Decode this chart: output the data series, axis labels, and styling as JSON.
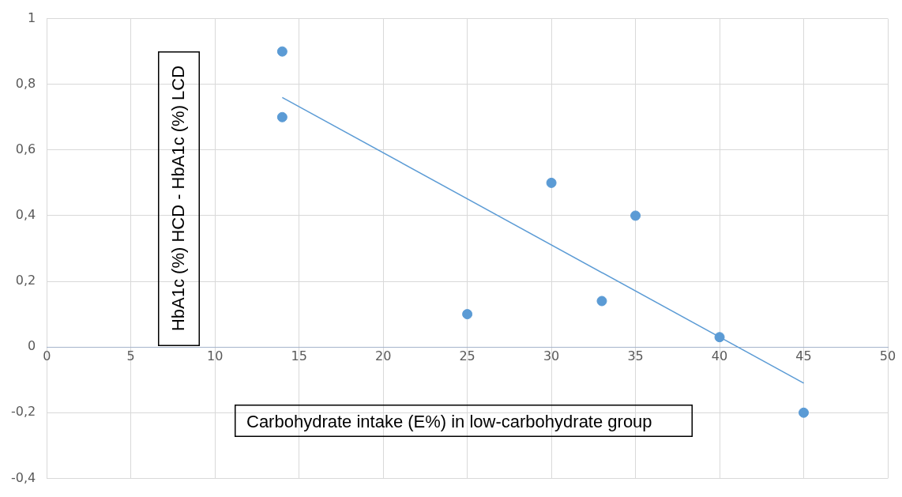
{
  "chart_data": {
    "type": "scatter",
    "xlabel": "Carbohydrate intake (E%) in low-carbohydrate group",
    "ylabel": "HbA1c (%) HCD - HbA1c (%) LCD",
    "xlim": [
      0,
      50
    ],
    "xticks": [
      0,
      5,
      10,
      15,
      20,
      25,
      30,
      35,
      40,
      45,
      50
    ],
    "ylim": [
      -0.4,
      1
    ],
    "yticks": [
      {
        "value": -0.4,
        "label": "-0,4"
      },
      {
        "value": -0.2,
        "label": "-0,2"
      },
      0,
      {
        "value": 0.2,
        "label": "0,2"
      },
      {
        "value": 0.4,
        "label": "0,4"
      },
      {
        "value": 0.6,
        "label": "0,6"
      },
      {
        "value": 0.8,
        "label": "0,8"
      },
      1
    ],
    "grid": true,
    "marker": "circle",
    "series": [
      {
        "color": "#5b9bd5",
        "x": [
          14,
          14,
          25,
          30,
          33,
          35,
          40,
          45
        ],
        "values": [
          0.9,
          0.7,
          0.1,
          0.5,
          0.14,
          0.4,
          0.03,
          -0.2
        ]
      },
      {
        "type": "line",
        "color": "#5b9bd5",
        "marker": "none",
        "x": [
          14,
          45
        ],
        "values": [
          0.76,
          -0.11
        ]
      }
    ]
  }
}
